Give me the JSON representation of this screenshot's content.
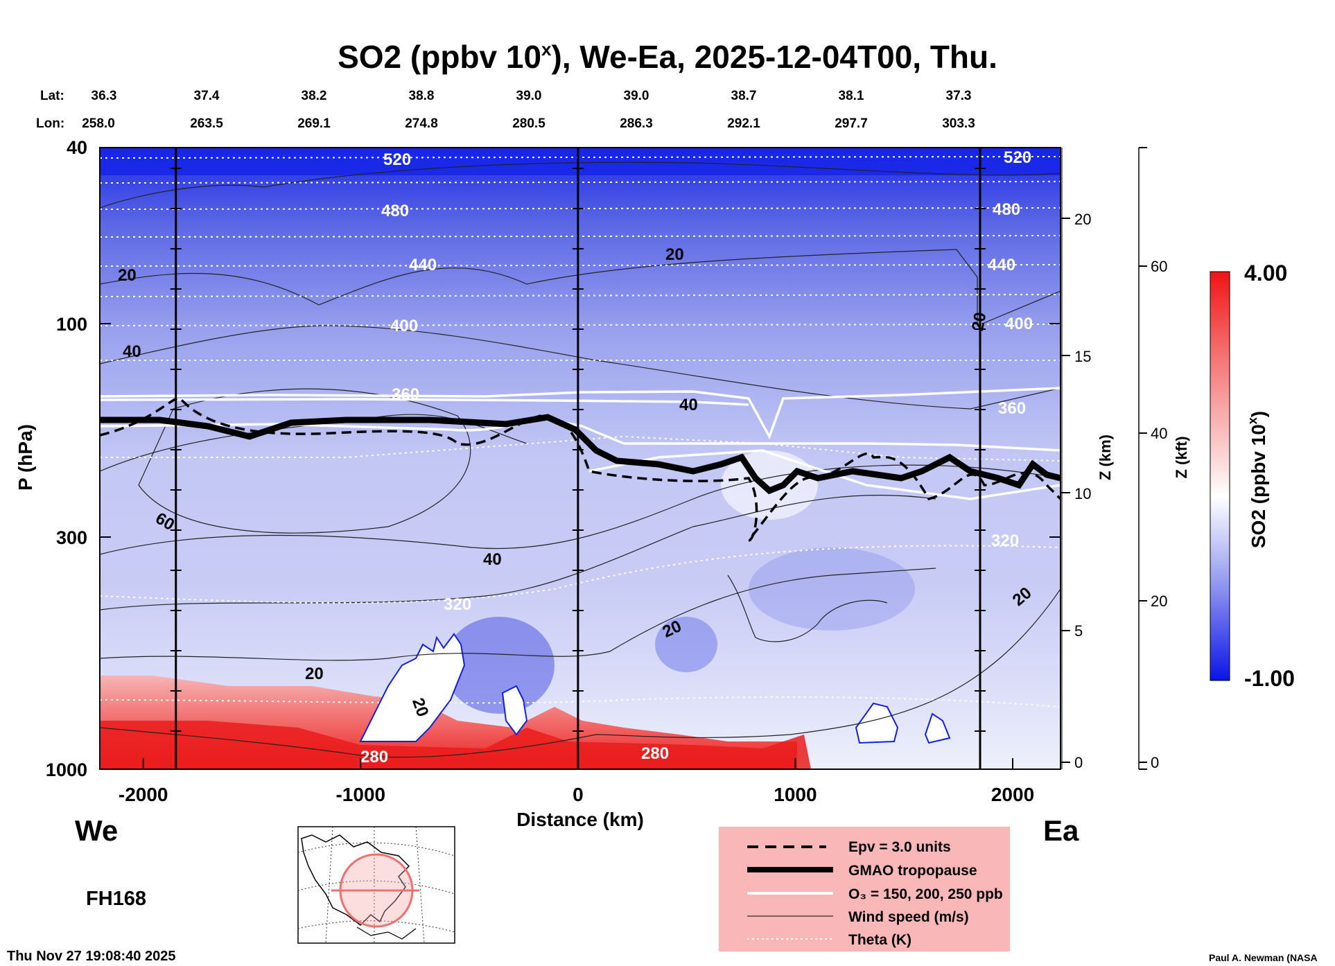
{
  "chart_data": {
    "type": "heatmap",
    "title": "SO2 (ppbv 10",
    "title_sup": "x",
    "title_rest": "), We-Ea, 2025-12-04T00, Thu.",
    "lat_label": "Lat:",
    "lon_label": "Lon:",
    "lat_values": [
      "36.3",
      "37.4",
      "38.2",
      "38.8",
      "39.0",
      "39.0",
      "38.7",
      "38.1",
      "37.3"
    ],
    "lon_values": [
      "258.0",
      "263.5",
      "269.1",
      "274.8",
      "280.5",
      "286.3",
      "292.1",
      "297.7",
      "303.3"
    ],
    "xlabel": "Distance (km)",
    "xlim": [
      -2200,
      2220
    ],
    "x_ticks": [
      -2000,
      -1000,
      0,
      1000,
      2000
    ],
    "x_tick_labels": [
      "-2000",
      "-1000",
      "0",
      "1000",
      "2000"
    ],
    "ylabel": "P (hPa)",
    "ylim": [
      1000,
      40
    ],
    "y_scale": "log",
    "y_tick_labels": [
      "40",
      "100",
      "300",
      "1000"
    ],
    "z_km_label": "Z (km)",
    "z_km_ticks": [
      "0",
      "5",
      "10",
      "15",
      "20"
    ],
    "z_kft_label": "Z (kft)",
    "z_kft_ticks": [
      "0",
      "20",
      "40",
      "60"
    ],
    "vertical_lines_km": [
      -1850,
      0,
      1850
    ],
    "colorbar": {
      "label": "SO2 (ppbv 10",
      "label_sup": "x",
      "label_end": ")",
      "max_label": "4.00",
      "min_label": "-1.00",
      "range": [
        -1.0,
        4.0
      ],
      "colors": [
        "#0a14e6",
        "#ffffff",
        "#f01414"
      ]
    },
    "theta_contour_labels": [
      "520",
      "480",
      "440",
      "400",
      "360",
      "320",
      "280"
    ],
    "wind_contour_labels": [
      "20",
      "40",
      "60"
    ],
    "side_labels": {
      "west": "We",
      "east": "Ea"
    },
    "forecast_hour": "FH168",
    "timestamp": "Thu Nov 27 19:08:40 2025",
    "credit": "Paul A. Newman (NASA",
    "legend": {
      "placement": "bottom-right",
      "background": "#f9b7b7",
      "items": [
        {
          "label": "Epv = 3.0 units",
          "style": "dashed-black"
        },
        {
          "label": "GMAO tropopause",
          "style": "thick-black"
        },
        {
          "label": "O₃ = 150, 200, 250 ppb",
          "style": "white"
        },
        {
          "label": "Wind speed (m/s)",
          "style": "thin-black"
        },
        {
          "label": "Theta (K)",
          "style": "dotted-white"
        }
      ]
    },
    "map_inset": {
      "region": "North America",
      "track_color": "#f07070"
    }
  }
}
